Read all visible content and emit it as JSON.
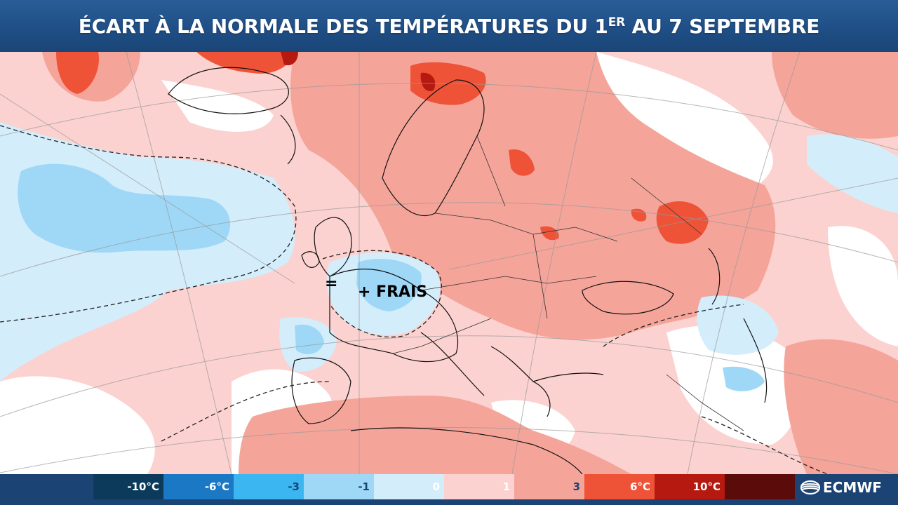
{
  "header": {
    "title_main": "ÉCART À LA NORMALE DES TEMPÉRATURES DU 1",
    "title_sup": "ER",
    "title_tail": " AU 7 SEPTEMBRE"
  },
  "map": {
    "annotations": {
      "frais": "+ FRAIS",
      "equal": "="
    }
  },
  "legend": {
    "items": [
      {
        "label": "-10°C",
        "color": "#0b3a5b",
        "text_color": "#ffffff"
      },
      {
        "label": "-6°C",
        "color": "#1a78c4",
        "text_color": "#ffffff"
      },
      {
        "label": "-3",
        "color": "#3bb6f0",
        "text_color": "#1b4373"
      },
      {
        "label": "-1",
        "color": "#9fd8f7",
        "text_color": "#1b4373"
      },
      {
        "label": "0",
        "color": "#d4edfb",
        "text_color": "#ffffff"
      },
      {
        "label": "1",
        "color": "#fbd2cf",
        "text_color": "#ffffff"
      },
      {
        "label": "3",
        "color": "#f5a49a",
        "text_color": "#1b4373"
      },
      {
        "label": "6°C",
        "color": "#ee5338",
        "text_color": "#ffffff"
      },
      {
        "label": "10°C",
        "color": "#b5190f",
        "text_color": "#ffffff"
      },
      {
        "label": "",
        "color": "#5b0c0a",
        "text_color": "#ffffff"
      }
    ]
  },
  "branding": {
    "logo_text": "ECMWF"
  }
}
